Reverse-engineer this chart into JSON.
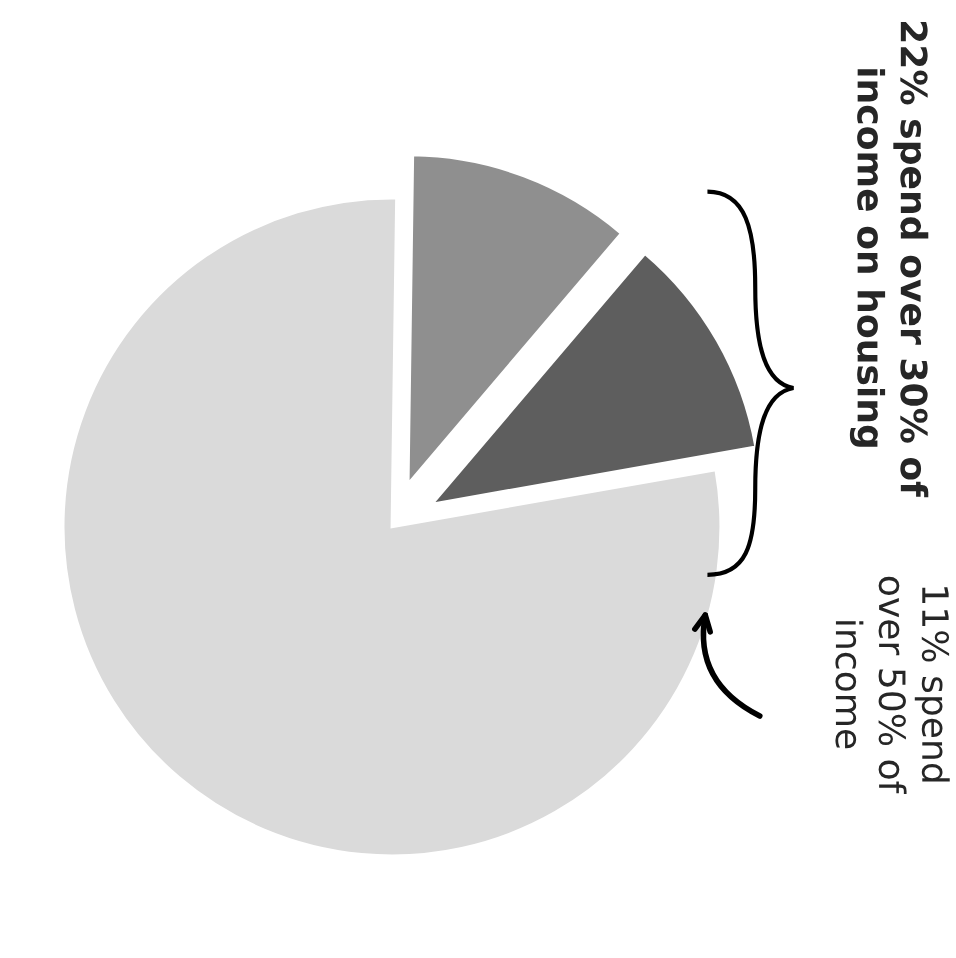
{
  "chart_data": {
    "type": "pie",
    "categories": [
      null,
      null,
      null
    ],
    "values": [
      11,
      11,
      78
    ],
    "colors": [
      "#5e5e5e",
      "#8f8f8f",
      "#dadada"
    ],
    "annotations": [
      "22% spend over 30% of\nincome on housing",
      "11% spend\nover 50% of\nincome"
    ],
    "legend": false
  }
}
